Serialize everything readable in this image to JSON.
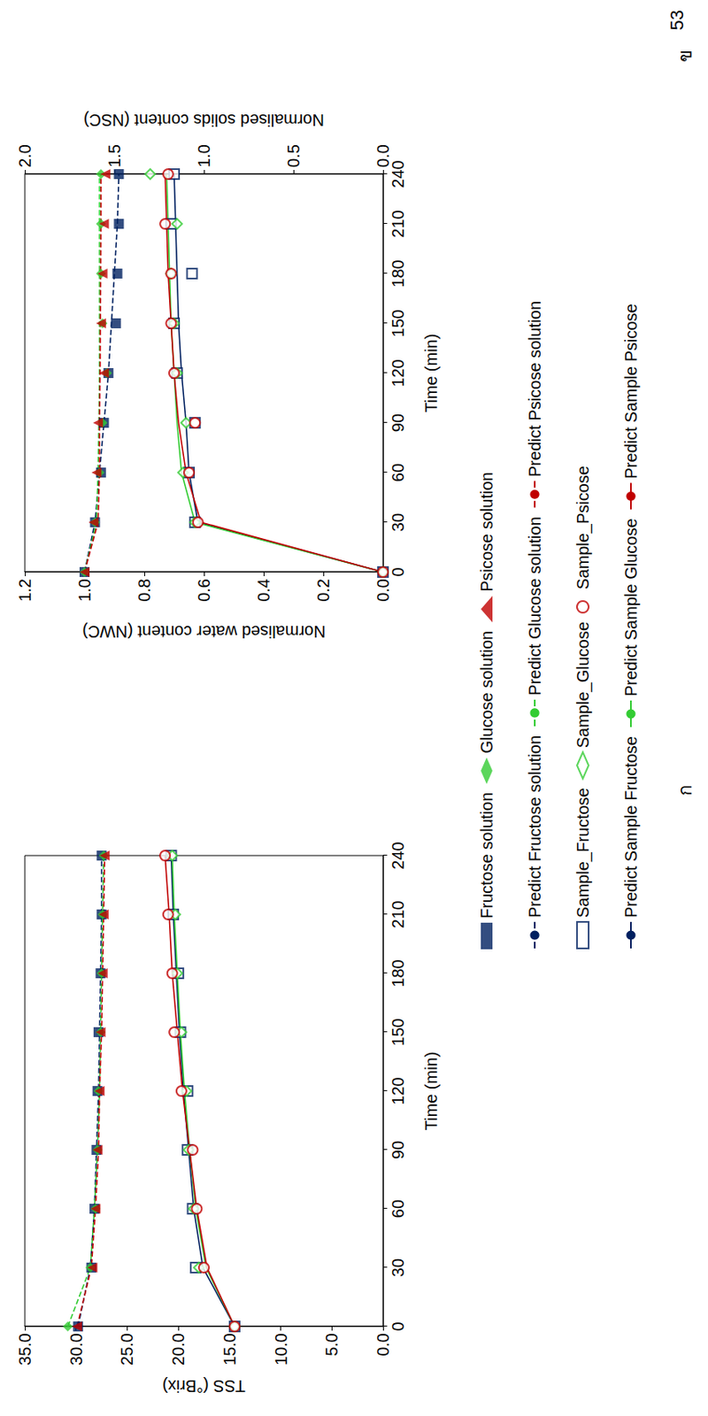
{
  "page_number": "53",
  "chart_data": [
    {
      "type": "line",
      "title": "ก",
      "x_label": "Time (min)",
      "y_label": "TSS (°Brix)",
      "x": [
        0,
        30,
        60,
        90,
        120,
        150,
        180,
        210,
        240
      ],
      "xlim": [
        0,
        240
      ],
      "xticks": [
        0,
        30,
        60,
        90,
        120,
        150,
        180,
        210,
        240
      ],
      "ylim": [
        0,
        35
      ],
      "yticks": [
        {
          "value": 0,
          "label": "0.0"
        },
        {
          "value": 5,
          "label": "5.0"
        },
        {
          "value": 10,
          "label": "10.0"
        },
        {
          "value": 15,
          "label": "15.0"
        },
        {
          "value": 20,
          "label": "20.0"
        },
        {
          "value": 25,
          "label": "25.0"
        },
        {
          "value": 30,
          "label": "30.0"
        },
        {
          "value": 35,
          "label": "35.0"
        }
      ],
      "grid": false,
      "legend": "bottom",
      "series": [
        {
          "name": "Fructose solution",
          "type": "scatter",
          "color": "#002060",
          "marker": "filled-square",
          "line_style": "none",
          "values": [
            29.8,
            28.5,
            28.2,
            28.0,
            27.9,
            27.8,
            27.6,
            27.5,
            27.5
          ]
        },
        {
          "name": "Glucose solution",
          "type": "scatter",
          "color": "#33cc33",
          "marker": "filled-diamond",
          "line_style": "none",
          "values": [
            30.8,
            28.6,
            28.1,
            27.9,
            27.8,
            27.6,
            27.5,
            27.4,
            27.3
          ]
        },
        {
          "name": "Psicose solution",
          "type": "scatter",
          "color": "#c00000",
          "marker": "filled-triangle",
          "line_style": "none",
          "values": [
            29.9,
            28.4,
            28.1,
            27.9,
            27.7,
            27.6,
            27.4,
            27.3,
            27.2
          ]
        },
        {
          "name": "Predict Fructose solution",
          "type": "line",
          "color": "#002060",
          "marker": "none",
          "line_style": "dashed",
          "values": [
            29.8,
            28.6,
            28.2,
            28.0,
            27.8,
            27.7,
            27.6,
            27.5,
            27.5
          ]
        },
        {
          "name": "Predict Glucose solution",
          "type": "line",
          "color": "#33cc33",
          "marker": "none",
          "line_style": "dashed",
          "values": [
            30.8,
            28.6,
            28.2,
            27.9,
            27.7,
            27.6,
            27.5,
            27.4,
            27.3
          ]
        },
        {
          "name": "Predict Psicose solution",
          "type": "line",
          "color": "#c00000",
          "marker": "none",
          "line_style": "dashed",
          "values": [
            29.9,
            28.5,
            28.1,
            27.8,
            27.7,
            27.5,
            27.4,
            27.3,
            27.2
          ]
        },
        {
          "name": "Sample_Fructose",
          "type": "scatter",
          "color": "#002060",
          "marker": "open-square",
          "line_style": "none",
          "values": [
            14.5,
            18.3,
            18.6,
            19.1,
            19.1,
            19.8,
            20.0,
            20.5,
            20.7
          ]
        },
        {
          "name": "Sample_Glucose",
          "type": "scatter",
          "color": "#33cc33",
          "marker": "open-diamond",
          "line_style": "none",
          "values": [
            14.5,
            18.0,
            18.5,
            19.0,
            19.2,
            19.7,
            20.1,
            20.3,
            20.6
          ]
        },
        {
          "name": "Sample_Psicose",
          "type": "scatter",
          "color": "#c00000",
          "marker": "open-circle",
          "line_style": "none",
          "values": [
            14.5,
            17.5,
            18.2,
            18.6,
            19.7,
            20.4,
            20.6,
            21.0,
            21.3
          ]
        },
        {
          "name": "Predict Sample Fructose",
          "type": "line",
          "color": "#002060",
          "marker": "none",
          "line_style": "solid",
          "values": [
            14.5,
            17.6,
            18.5,
            19.0,
            19.5,
            19.9,
            20.2,
            20.5,
            20.7
          ]
        },
        {
          "name": "Predict Sample Glucose",
          "type": "line",
          "color": "#33cc33",
          "marker": "none",
          "line_style": "solid",
          "values": [
            14.5,
            17.3,
            18.3,
            18.9,
            19.4,
            19.8,
            20.1,
            20.4,
            20.6
          ]
        },
        {
          "name": "Predict Sample Psicose",
          "type": "line",
          "color": "#c00000",
          "marker": "none",
          "line_style": "solid",
          "values": [
            14.5,
            17.2,
            18.2,
            18.9,
            19.6,
            20.1,
            20.6,
            20.9,
            21.3
          ]
        }
      ]
    },
    {
      "type": "line",
      "title": "ข",
      "x_label": "Time (min)",
      "y_label": "Normalised water content (NWC)",
      "y2_label": "Normalised solids content (NSC)",
      "x": [
        0,
        30,
        60,
        90,
        120,
        150,
        180,
        210,
        240
      ],
      "xlim": [
        0,
        240
      ],
      "xticks": [
        0,
        30,
        60,
        90,
        120,
        150,
        180,
        210,
        240
      ],
      "ylim": [
        0,
        1.2
      ],
      "yticks": [
        {
          "value": 0,
          "label": "0.0"
        },
        0.2,
        0.4,
        0.6,
        0.8,
        {
          "value": 1,
          "label": "1.0"
        },
        1.2
      ],
      "y2lim": [
        0,
        2
      ],
      "y2ticks": [
        {
          "value": 0,
          "label": "0.0"
        },
        0.5,
        {
          "value": 1,
          "label": "1.0"
        },
        1.5,
        {
          "value": 2,
          "label": "2.0"
        }
      ],
      "grid": false,
      "legend": "bottom",
      "series": [
        {
          "name": "Fructose solution",
          "type": "scatter",
          "color": "#002060",
          "marker": "filled-square",
          "line_style": "none",
          "values": [
            1.0,
            0.965,
            0.945,
            0.935,
            0.92,
            0.895,
            0.89,
            0.885,
            0.885
          ]
        },
        {
          "name": "Glucose solution",
          "type": "scatter",
          "color": "#33cc33",
          "marker": "filled-diamond",
          "line_style": "none",
          "values": [
            1.0,
            0.965,
            0.95,
            0.94,
            0.925,
            0.94,
            0.945,
            0.945,
            0.945
          ]
        },
        {
          "name": "Psicose solution",
          "type": "scatter",
          "color": "#c00000",
          "marker": "filled-triangle",
          "line_style": "none",
          "values": [
            1.0,
            0.97,
            0.96,
            0.955,
            0.935,
            0.945,
            0.94,
            0.935,
            0.93
          ]
        },
        {
          "name": "Predict Fructose solution",
          "type": "line",
          "color": "#002060",
          "marker": "none",
          "line_style": "dashed",
          "values": [
            1.0,
            0.965,
            0.95,
            0.935,
            0.92,
            0.91,
            0.9,
            0.89,
            0.885
          ]
        },
        {
          "name": "Predict Glucose solution",
          "type": "line",
          "color": "#33cc33",
          "marker": "none",
          "line_style": "dashed",
          "values": [
            1.0,
            0.96,
            0.955,
            0.952,
            0.95,
            0.95,
            0.95,
            0.95,
            0.95
          ]
        },
        {
          "name": "Predict Psicose solution",
          "type": "line",
          "color": "#c00000",
          "marker": "none",
          "line_style": "dashed",
          "values": [
            1.0,
            0.955,
            0.95,
            0.95,
            0.948,
            0.947,
            0.946,
            0.945,
            0.945
          ]
        },
        {
          "name": "Sample_Fructose",
          "type": "scatter",
          "color": "#002060",
          "marker": "open-square",
          "line_style": "none",
          "values": [
            0,
            0.63,
            0.65,
            0.63,
            0.69,
            0.7,
            0.64,
            0.71,
            0.7
          ]
        },
        {
          "name": "Sample_Glucose",
          "type": "scatter",
          "color": "#33cc33",
          "marker": "open-diamond",
          "line_style": "none",
          "values": [
            0,
            0.63,
            0.67,
            0.66,
            0.69,
            0.7,
            0.71,
            0.69,
            0.78
          ]
        },
        {
          "name": "Sample_Psicose",
          "type": "scatter",
          "color": "#c00000",
          "marker": "open-circle",
          "line_style": "none",
          "values": [
            0,
            0.62,
            0.65,
            0.63,
            0.7,
            0.71,
            0.71,
            0.73,
            0.72
          ]
        },
        {
          "name": "Predict Sample Fructose",
          "type": "line",
          "color": "#002060",
          "marker": "none",
          "line_style": "solid",
          "values": [
            0,
            0.62,
            0.65,
            0.66,
            0.675,
            0.685,
            0.69,
            0.695,
            0.7
          ]
        },
        {
          "name": "Predict Sample Glucose",
          "type": "line",
          "color": "#33cc33",
          "marker": "none",
          "line_style": "solid",
          "values": [
            0,
            0.63,
            0.675,
            0.69,
            0.7,
            0.71,
            0.715,
            0.72,
            0.725
          ]
        },
        {
          "name": "Predict Sample Psicose",
          "type": "line",
          "color": "#c00000",
          "marker": "none",
          "line_style": "solid",
          "values": [
            0,
            0.61,
            0.66,
            0.685,
            0.7,
            0.71,
            0.72,
            0.725,
            0.73
          ]
        }
      ]
    }
  ]
}
